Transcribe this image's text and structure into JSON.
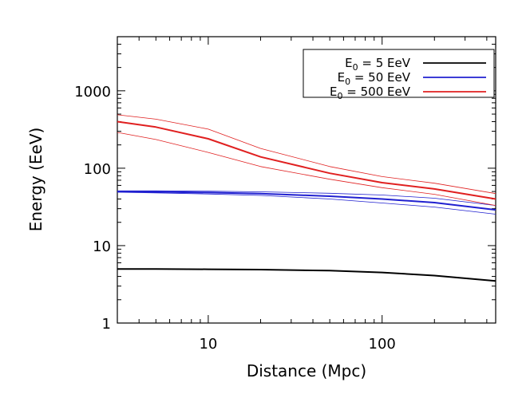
{
  "chart_data": {
    "type": "line",
    "xlabel": "Distance (Mpc)",
    "ylabel": "Energy (EeV)",
    "x_scale": "log",
    "y_scale": "log",
    "xlim": [
      3,
      450
    ],
    "ylim": [
      1,
      5000
    ],
    "x_ticks": [
      10,
      100
    ],
    "x_tick_labels": [
      "10",
      "100"
    ],
    "y_ticks": [
      1,
      10,
      100,
      1000
    ],
    "y_tick_labels": [
      "1",
      "10",
      "100",
      "1000"
    ],
    "grid": false,
    "legend_position": "top-right",
    "legend": [
      {
        "label_main": "E",
        "label_sub": "0",
        "label_rest": " = 5 EeV",
        "color": "#000000"
      },
      {
        "label_main": "E",
        "label_sub": "0",
        "label_rest": " = 50 EeV",
        "color": "#2020d0"
      },
      {
        "label_main": "E",
        "label_sub": "0",
        "label_rest": " = 500 EeV",
        "color": "#e02020"
      }
    ],
    "x": [
      3,
      5,
      10,
      20,
      50,
      100,
      200,
      450
    ],
    "series": [
      {
        "name": "E0 = 5 EeV",
        "color": "#000000",
        "role": "mean",
        "values": [
          5.0,
          5.0,
          4.95,
          4.9,
          4.75,
          4.5,
          4.1,
          3.5
        ]
      },
      {
        "name": "E0 = 50 EeV",
        "color": "#2020d0",
        "role": "mean",
        "values": [
          50,
          49.5,
          48.5,
          47,
          43.5,
          40,
          36,
          29
        ]
      },
      {
        "name": "E0 = 50 EeV",
        "color": "#2020d0",
        "role": "upper",
        "values": [
          51,
          51,
          50.5,
          49.5,
          47.5,
          45,
          41,
          33
        ]
      },
      {
        "name": "E0 = 50 EeV",
        "color": "#2020d0",
        "role": "lower",
        "values": [
          49,
          48,
          46.5,
          44.5,
          40,
          35.5,
          31.5,
          25.5
        ]
      },
      {
        "name": "E0 = 500 EeV",
        "color": "#e02020",
        "role": "mean",
        "values": [
          400,
          340,
          240,
          140,
          86,
          65,
          54,
          40
        ]
      },
      {
        "name": "E0 = 500 EeV",
        "color": "#e02020",
        "role": "upper",
        "values": [
          490,
          430,
          320,
          180,
          105,
          78,
          64,
          47
        ]
      },
      {
        "name": "E0 = 500 EeV",
        "color": "#e02020",
        "role": "lower",
        "values": [
          290,
          235,
          160,
          105,
          72,
          56,
          46,
          33
        ]
      }
    ]
  }
}
